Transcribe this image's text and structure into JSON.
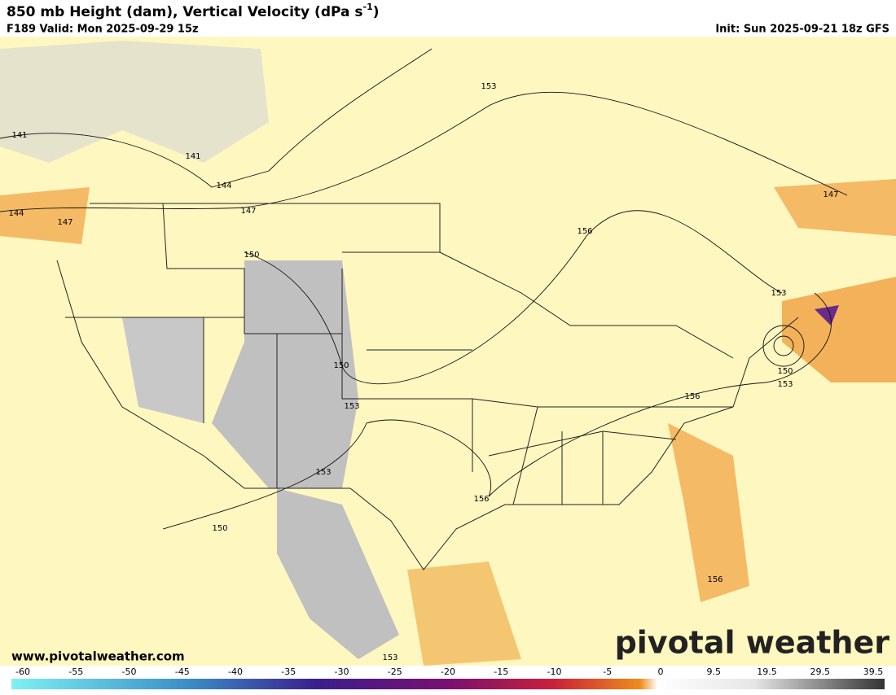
{
  "header": {
    "title": "850 mb Height (dam), Vertical Velocity (dPa s",
    "title_sup": "-1",
    "title_end": ")",
    "valid": "F189 Valid: Mon 2025-09-29 15z",
    "init": "Init: Sun 2025-09-21 18z GFS"
  },
  "map": {
    "contour_labels": [
      141,
      141,
      144,
      144,
      147,
      147,
      147,
      150,
      150,
      150,
      153,
      153,
      153,
      153,
      153,
      153,
      156,
      156,
      156,
      156,
      150
    ],
    "website": "www.pivotalweather.com",
    "logo": "pivotal weather"
  },
  "colorbar": {
    "ticks": [
      -60,
      -55,
      -50,
      -45,
      -40,
      -35,
      -30,
      -25,
      -20,
      -15,
      -10,
      -5,
      0,
      9.5,
      19.5,
      29.5,
      39.5
    ]
  }
}
